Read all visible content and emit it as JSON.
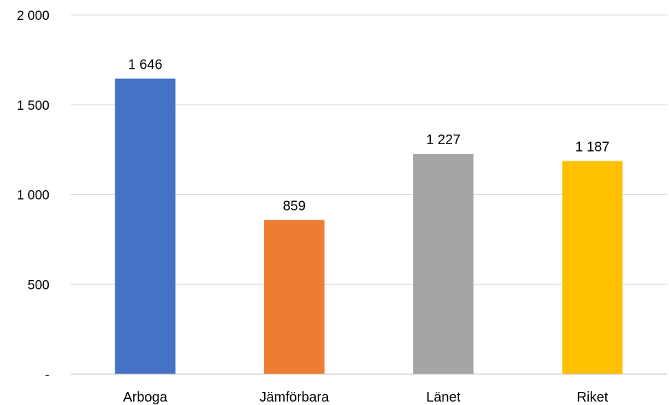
{
  "chart_data": {
    "type": "bar",
    "categories": [
      "Arboga",
      "Jämförbara",
      "Länet",
      "Riket"
    ],
    "values": [
      1646,
      859,
      1227,
      1187
    ],
    "data_labels": [
      "1 646",
      "859",
      "1 227",
      "1 187"
    ],
    "colors": [
      "#4472c4",
      "#ed7d31",
      "#a5a5a5",
      "#ffc000"
    ],
    "y_ticks": [
      0,
      500,
      1000,
      1500,
      2000
    ],
    "y_tick_labels": [
      "-",
      "500",
      "1 000",
      "1 500",
      "2 000"
    ],
    "ylim": [
      0,
      2000
    ],
    "grid": true,
    "legend": "none"
  }
}
